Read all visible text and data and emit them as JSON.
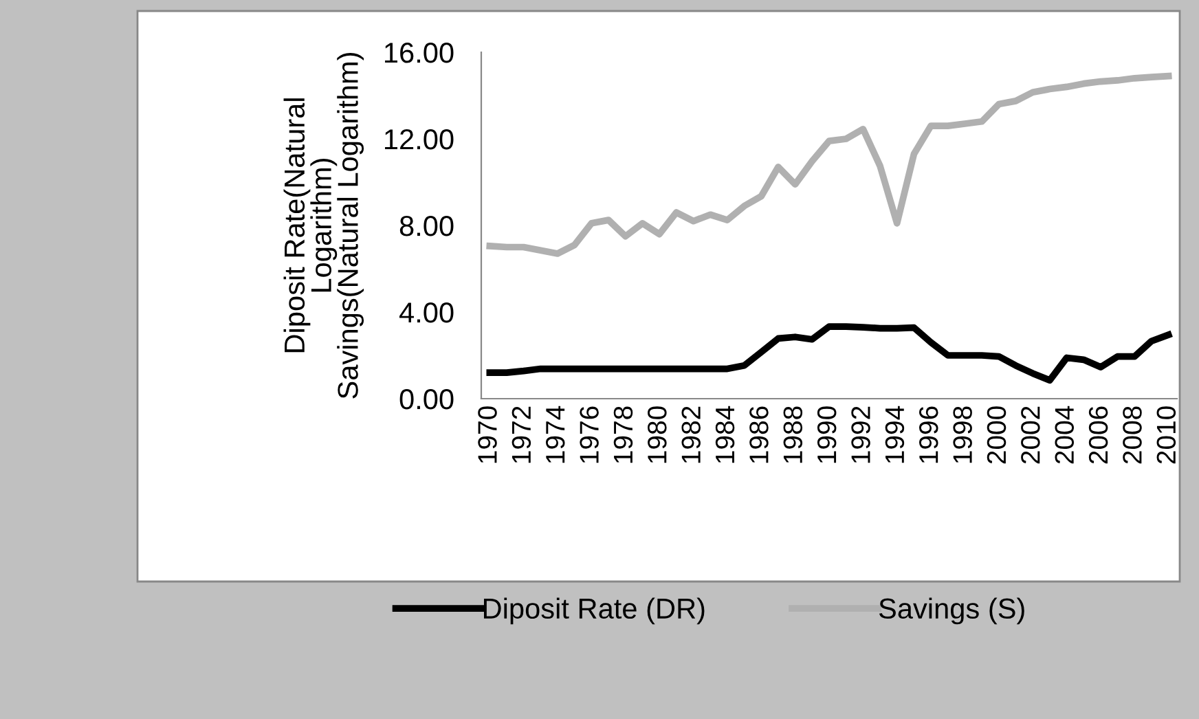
{
  "chart_data": {
    "type": "line",
    "ylabel": "Diposit Rate(Natural\nLogarithm)\nSavings(Natural Logarithm)",
    "categories": [
      "1970",
      null,
      "1972",
      null,
      "1974",
      null,
      "1976",
      null,
      "1978",
      null,
      "1980",
      null,
      "1982",
      null,
      "1984",
      null,
      "1986",
      null,
      "1988",
      null,
      "1990",
      null,
      "1992",
      null,
      "1994",
      null,
      "1996",
      null,
      "1998",
      null,
      "2000",
      null,
      "2002",
      null,
      "2004",
      null,
      "2006",
      null,
      "2008",
      null,
      "2010"
    ],
    "series": [
      {
        "name": "Diposit Rate (DR)",
        "color": "#000000",
        "values": [
          1.2,
          1.2,
          1.28,
          1.38,
          1.38,
          1.38,
          1.38,
          1.38,
          1.38,
          1.38,
          1.38,
          1.38,
          1.38,
          1.38,
          1.38,
          1.53,
          2.15,
          2.78,
          2.85,
          2.74,
          3.33,
          3.33,
          3.3,
          3.25,
          3.25,
          3.28,
          2.6,
          2.0,
          2.0,
          2.0,
          1.95,
          1.53,
          1.17,
          0.85,
          1.89,
          1.8,
          1.46,
          1.95,
          1.95,
          2.66,
          2.95
        ]
      },
      {
        "name": "Savings (S)",
        "color": "#b0b0b0",
        "values": [
          7.05,
          7.0,
          7.0,
          6.85,
          6.7,
          7.1,
          8.1,
          8.25,
          7.5,
          8.1,
          7.6,
          8.6,
          8.2,
          8.5,
          8.25,
          8.9,
          9.35,
          10.7,
          9.9,
          10.97,
          11.9,
          12.0,
          12.45,
          10.75,
          8.1,
          11.3,
          12.6,
          12.6,
          12.7,
          12.8,
          13.6,
          13.75,
          14.15,
          14.3,
          14.4,
          14.55,
          14.65,
          14.7,
          14.8,
          14.85,
          14.9
        ]
      }
    ],
    "ylim": [
      0,
      16
    ],
    "yticks": [
      {
        "value": 0,
        "label": "0.00"
      },
      {
        "value": 4,
        "label": "4.00"
      },
      {
        "value": 8,
        "label": "8.00"
      },
      {
        "value": 12,
        "label": "12.00"
      },
      {
        "value": 16,
        "label": "16.00"
      }
    ],
    "grid": false,
    "legend": "bottom",
    "marker": "none",
    "line_style": "solid"
  }
}
